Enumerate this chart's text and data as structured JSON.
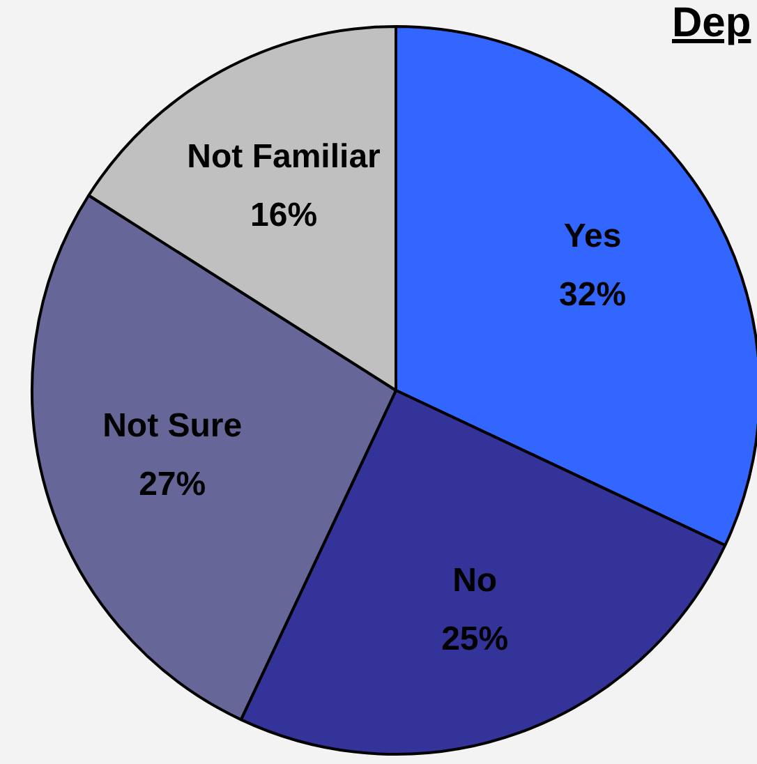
{
  "chart_data": {
    "type": "pie",
    "title": "Dep",
    "categories": [
      "Yes",
      "No",
      "Not Sure",
      "Not Familiar"
    ],
    "values": [
      32,
      25,
      27,
      16
    ],
    "value_labels": [
      "32%",
      "25%",
      "27%",
      "16%"
    ],
    "colors": [
      "#3366ff",
      "#333399",
      "#666699",
      "#c0c0c0"
    ],
    "legend": false
  }
}
